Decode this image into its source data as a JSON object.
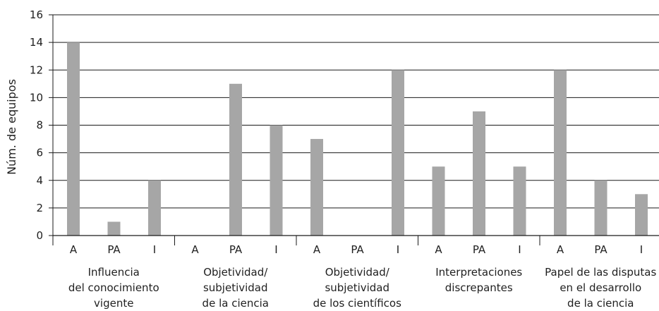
{
  "chart_data": {
    "type": "bar",
    "title": "",
    "ylabel": "Núm. de equipos",
    "ylim": [
      0,
      16
    ],
    "yticks": [
      "0",
      "2",
      "4",
      "6",
      "8",
      "10",
      "12",
      "14",
      "16"
    ],
    "grid": true,
    "bar_color": "#a6a6a6",
    "grid_color": "#1a1a1a",
    "groups": [
      {
        "label_lines": [
          "Influencia",
          "del conocimiento",
          "vigente"
        ],
        "categories": [
          "A",
          "PA",
          "I"
        ],
        "values": [
          14,
          1,
          4
        ]
      },
      {
        "label_lines": [
          "Objetividad/",
          "subjetividad",
          "de la ciencia"
        ],
        "categories": [
          "A",
          "PA",
          "I"
        ],
        "values": [
          0,
          11,
          8
        ]
      },
      {
        "label_lines": [
          "Objetividad/",
          "subjetividad",
          "de los científicos"
        ],
        "categories": [
          "A",
          "PA",
          "I"
        ],
        "values": [
          7,
          0,
          12
        ]
      },
      {
        "label_lines": [
          "Interpretaciones",
          "discrepantes"
        ],
        "categories": [
          "A",
          "PA",
          "I"
        ],
        "values": [
          5,
          9,
          5
        ]
      },
      {
        "label_lines": [
          "Papel de las disputas",
          "en el desarrollo",
          "de la ciencia"
        ],
        "categories": [
          "A",
          "PA",
          "I"
        ],
        "values": [
          12,
          4,
          3
        ]
      }
    ]
  }
}
